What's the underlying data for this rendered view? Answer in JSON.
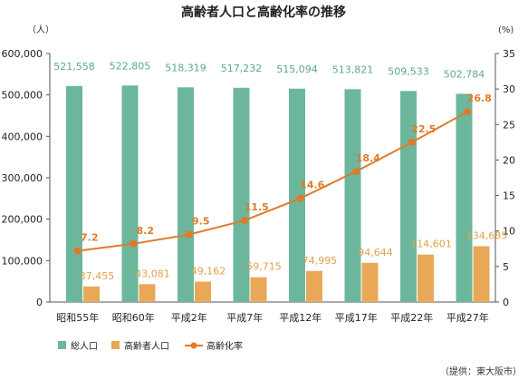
{
  "chart_data": {
    "type": "bar",
    "title": "高齢者人口と高齢化率の推移",
    "left_axis_unit": "（人）",
    "right_axis_unit": "(%)",
    "categories": [
      "昭和55年",
      "昭和60年",
      "平成2年",
      "平成7年",
      "平成12年",
      "平成17年",
      "平成22年",
      "平成27年"
    ],
    "series": [
      {
        "name": "総人口",
        "kind": "bar",
        "axis": "left",
        "color": "#6cb79c",
        "values": [
          521558,
          522805,
          518319,
          517232,
          515094,
          513821,
          509533,
          502784
        ],
        "labels": [
          "521,558",
          "522,805",
          "518,319",
          "517,232",
          "515,094",
          "513,821",
          "509,533",
          "502,784"
        ]
      },
      {
        "name": "高齢者人口",
        "kind": "bar",
        "axis": "left",
        "color": "#e8a857",
        "values": [
          37455,
          43081,
          49162,
          59715,
          74995,
          94644,
          114601,
          134685
        ],
        "labels": [
          "37,455",
          "43,081",
          "49,162",
          "59,715",
          "74,995",
          "94,644",
          "114,601",
          "134,685"
        ]
      },
      {
        "name": "高齢化率",
        "kind": "line",
        "axis": "right",
        "color": "#e07a2a",
        "values": [
          7.2,
          8.2,
          9.5,
          11.5,
          14.6,
          18.4,
          22.5,
          26.8
        ],
        "labels": [
          "7.2",
          "8.2",
          "9.5",
          "11.5",
          "14.6",
          "18.4",
          "22.5",
          "26.8"
        ]
      }
    ],
    "left_axis": {
      "ylim": [
        0,
        600000
      ],
      "ticks": [
        0,
        100000,
        200000,
        300000,
        400000,
        500000,
        600000
      ],
      "tick_labels": [
        "0",
        "100,000",
        "200,000",
        "300,000",
        "400,000",
        "500,000",
        "600,000"
      ]
    },
    "right_axis": {
      "ylim": [
        0,
        35
      ],
      "ticks": [
        0,
        5,
        10,
        15,
        20,
        25,
        30,
        35
      ],
      "tick_labels": [
        "0",
        "5",
        "10",
        "15",
        "20",
        "25",
        "30",
        "35"
      ]
    },
    "legend": {
      "placement": "bottom-left",
      "items": [
        "総人口",
        "高齢者人口",
        "高齢化率"
      ]
    },
    "source": "（提供：東大阪市）",
    "grid": false
  }
}
